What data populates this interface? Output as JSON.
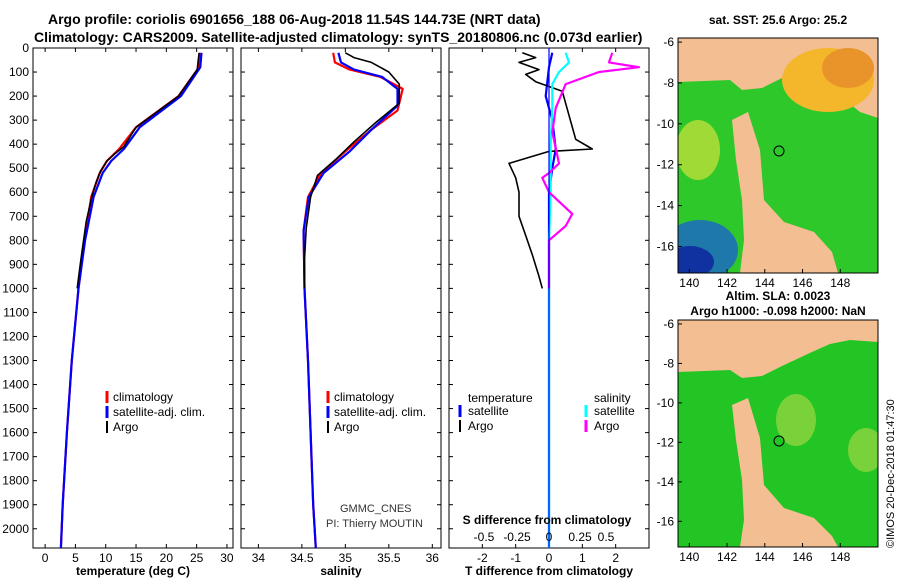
{
  "header": {
    "title_line1": "Argo profile: coriolis 6901656_188 06-Aug-2018 11.54S 144.73E (NRT data)",
    "title_line2": "Climatology: CARS2009. Satellite-adjusted climatology: synTS_20180806.nc (0.073d earlier)"
  },
  "colors": {
    "climatology": "#ff0000",
    "satellite": "#0000ff",
    "argo": "#000000",
    "cyan": "#00ffff",
    "magenta": "#ff00ff",
    "land": "#f2be92",
    "sea_green": "#22c524"
  },
  "depth_axis": {
    "ticks": [
      0,
      100,
      200,
      300,
      400,
      500,
      600,
      700,
      800,
      900,
      1000,
      1100,
      1200,
      1300,
      1400,
      1500,
      1600,
      1700,
      1800,
      1900,
      2000
    ],
    "range": [
      0,
      2080
    ]
  },
  "chart_data": [
    {
      "type": "line",
      "name": "temperature-panel",
      "xlabel": "temperature (deg C)",
      "xlim": [
        -2,
        31
      ],
      "xticks": [
        0,
        5,
        10,
        15,
        20,
        25,
        30
      ],
      "legend": {
        "position": "bottom-right",
        "items": [
          "climatology",
          "satellite-adj. clim.",
          "Argo"
        ]
      },
      "series": [
        {
          "name": "climatology",
          "key": "climatology",
          "points": [
            [
              25.6,
              20
            ],
            [
              25.4,
              80
            ],
            [
              22,
              200
            ],
            [
              15,
              330
            ],
            [
              12.2,
              420
            ],
            [
              10.2,
              470
            ],
            [
              9,
              520
            ],
            [
              7.6,
              620
            ],
            [
              6.5,
              800
            ],
            [
              5.5,
              1000
            ],
            [
              4.4,
              1300
            ],
            [
              3.6,
              1600
            ],
            [
              2.9,
              1900
            ],
            [
              2.6,
              2080
            ]
          ]
        },
        {
          "name": "satellite-adj. clim.",
          "key": "satellite",
          "points": [
            [
              25.8,
              20
            ],
            [
              25.6,
              80
            ],
            [
              22.4,
              200
            ],
            [
              15.6,
              330
            ],
            [
              13,
              420
            ],
            [
              10.9,
              470
            ],
            [
              9.5,
              520
            ],
            [
              8,
              620
            ],
            [
              6.6,
              800
            ],
            [
              5.5,
              1000
            ],
            [
              4.4,
              1300
            ],
            [
              3.6,
              1600
            ],
            [
              2.9,
              1900
            ],
            [
              2.6,
              2080
            ]
          ]
        },
        {
          "name": "Argo",
          "key": "argo",
          "points": [
            [
              25.4,
              20
            ],
            [
              25.1,
              90
            ],
            [
              22,
              200
            ],
            [
              15,
              330
            ],
            [
              13,
              410
            ],
            [
              11.5,
              440
            ],
            [
              10.2,
              470
            ],
            [
              9.2,
              510
            ],
            [
              8.4,
              560
            ],
            [
              7.7,
              620
            ],
            [
              6.8,
              720
            ],
            [
              5.9,
              880
            ],
            [
              5.3,
              1000
            ]
          ]
        }
      ]
    },
    {
      "type": "line",
      "name": "salinity-panel",
      "xlabel": "salinity",
      "xlim": [
        33.8,
        36.1
      ],
      "xticks": [
        34,
        34.5,
        35,
        35.5,
        36
      ],
      "legend": {
        "position": "bottom-right",
        "items": [
          "climatology",
          "satellite-adj. clim.",
          "Argo"
        ]
      },
      "annotations": [
        "GMMC_CNES",
        "PI: Thierry MOUTIN"
      ],
      "series": [
        {
          "name": "climatology",
          "key": "climatology",
          "points": [
            [
              34.86,
              20
            ],
            [
              34.88,
              60
            ],
            [
              35.05,
              90
            ],
            [
              35.4,
              120
            ],
            [
              35.66,
              170
            ],
            [
              35.6,
              260
            ],
            [
              35.3,
              340
            ],
            [
              35,
              430
            ],
            [
              34.72,
              520
            ],
            [
              34.57,
              620
            ],
            [
              34.52,
              760
            ],
            [
              34.53,
              1000
            ],
            [
              34.57,
              1300
            ],
            [
              34.6,
              1600
            ],
            [
              34.63,
              1900
            ],
            [
              34.66,
              2080
            ]
          ]
        },
        {
          "name": "satellite-adj. clim.",
          "key": "satellite",
          "points": [
            [
              34.92,
              20
            ],
            [
              34.95,
              60
            ],
            [
              35.1,
              90
            ],
            [
              35.42,
              120
            ],
            [
              35.6,
              170
            ],
            [
              35.6,
              240
            ],
            [
              35.3,
              340
            ],
            [
              35.05,
              430
            ],
            [
              34.75,
              520
            ],
            [
              34.58,
              620
            ],
            [
              34.52,
              760
            ],
            [
              34.53,
              1000
            ],
            [
              34.57,
              1300
            ],
            [
              34.6,
              1600
            ],
            [
              34.63,
              1900
            ],
            [
              34.66,
              2080
            ]
          ]
        },
        {
          "name": "Argo",
          "key": "argo",
          "points": [
            [
              35.0,
              20
            ],
            [
              35.1,
              40
            ],
            [
              35.3,
              60
            ],
            [
              35.5,
              100
            ],
            [
              35.62,
              150
            ],
            [
              35.62,
              230
            ],
            [
              35.35,
              310
            ],
            [
              35.1,
              390
            ],
            [
              34.9,
              460
            ],
            [
              34.68,
              530
            ],
            [
              34.6,
              620
            ],
            [
              34.55,
              750
            ],
            [
              34.53,
              880
            ],
            [
              34.53,
              1000
            ]
          ]
        }
      ]
    },
    {
      "type": "line",
      "name": "difference-panel",
      "xlabel": "T difference from climatology",
      "xlabel2": "S difference from climatology",
      "xlim": [
        -3,
        3
      ],
      "xticks": [
        -2,
        -1,
        0,
        1,
        2
      ],
      "xticks_s": [
        "-0.5",
        "-0.25",
        "0",
        "0.25",
        "0.5"
      ],
      "legend": {
        "position": "bottom",
        "items_t": [
          "temperature",
          "satellite",
          "Argo"
        ],
        "items_s": [
          "salinity",
          "satellite",
          "Argo"
        ]
      },
      "series": [
        {
          "name": "T satellite",
          "key": "satellite",
          "points": [
            [
              0.1,
              20
            ],
            [
              0,
              80
            ],
            [
              -0.1,
              200
            ],
            [
              0.1,
              300
            ],
            [
              0.2,
              420
            ],
            [
              0.1,
              500
            ],
            [
              0,
              600
            ],
            [
              0,
              800
            ],
            [
              0,
              1000
            ],
            [
              0,
              2080
            ]
          ]
        },
        {
          "name": "T Argo",
          "key": "argo",
          "points": [
            [
              -0.8,
              20
            ],
            [
              -0.4,
              40
            ],
            [
              -0.9,
              60
            ],
            [
              -0.3,
              90
            ],
            [
              -0.7,
              110
            ],
            [
              -0.4,
              140
            ],
            [
              0.4,
              180
            ],
            [
              0.6,
              280
            ],
            [
              0.8,
              380
            ],
            [
              1.3,
              420
            ],
            [
              0,
              430
            ],
            [
              -1.2,
              480
            ],
            [
              -1,
              540
            ],
            [
              -0.9,
              600
            ],
            [
              -0.9,
              700
            ],
            [
              -0.7,
              780
            ],
            [
              -0.5,
              860
            ],
            [
              -0.3,
              950
            ],
            [
              -0.2,
              1000
            ]
          ]
        },
        {
          "name": "S satellite",
          "key": "cyan",
          "points": [
            [
              0.5,
              20
            ],
            [
              0.6,
              60
            ],
            [
              0.3,
              100
            ],
            [
              0.1,
              150
            ],
            [
              0.1,
              250
            ],
            [
              0.05,
              400
            ],
            [
              0.05,
              600
            ],
            [
              0,
              800
            ],
            [
              0,
              2080
            ]
          ]
        },
        {
          "name": "S Argo",
          "key": "magenta",
          "points": [
            [
              1.9,
              20
            ],
            [
              1.8,
              60
            ],
            [
              2.7,
              80
            ],
            [
              1.5,
              100
            ],
            [
              0.5,
              150
            ],
            [
              0.2,
              250
            ],
            [
              0.1,
              350
            ],
            [
              0.3,
              480
            ],
            [
              0,
              520
            ],
            [
              -0.2,
              540
            ],
            [
              0,
              600
            ],
            [
              0.7,
              690
            ],
            [
              0.5,
              740
            ],
            [
              0,
              800
            ],
            [
              0,
              1000
            ]
          ]
        }
      ]
    }
  ],
  "maps": {
    "xticks": [
      "140",
      "142",
      "144",
      "146",
      "148"
    ],
    "yticks": [
      "-6",
      "-8",
      "-10",
      "-12",
      "-14",
      "-16"
    ],
    "map1_title": "sat. SST: 25.6 Argo: 25.2",
    "map2_title1": "Altim. SLA: 0.0023",
    "map2_title2": "Argo h1000: -0.098 h2000: NaN"
  },
  "footer": {
    "copyright": "©IMOS 20-Dec-2018 01:47:30"
  }
}
